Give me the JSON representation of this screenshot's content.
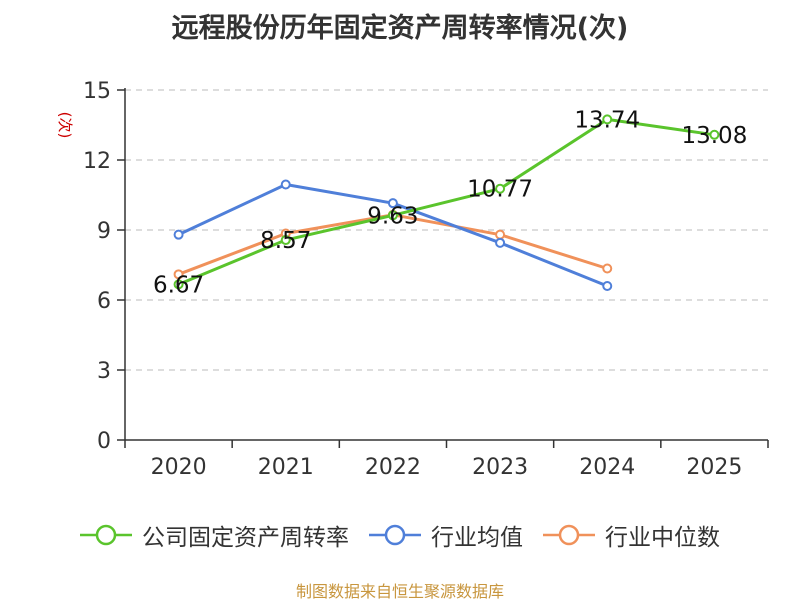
{
  "chart_data": {
    "type": "line",
    "title": "远程股份历年固定资产周转率情况(次)",
    "ylabel": "(次)",
    "xlabel": "",
    "categories": [
      "2020",
      "2021",
      "2022",
      "2023",
      "2024",
      "2025"
    ],
    "ylim": [
      0,
      15
    ],
    "yticks": [
      0,
      3,
      6,
      9,
      12,
      15
    ],
    "grid": true,
    "legend_position": "bottom",
    "series": [
      {
        "name": "公司固定资产周转率",
        "color": "#5ac42c",
        "values": [
          6.67,
          8.57,
          9.63,
          10.77,
          13.74,
          13.08
        ],
        "labels": [
          "6.67",
          "8.57",
          "9.63",
          "10.77",
          "13.74",
          "13.08"
        ]
      },
      {
        "name": "行业均值",
        "color": "#4f7fd9",
        "values": [
          8.8,
          10.95,
          10.15,
          8.45,
          6.6,
          null
        ]
      },
      {
        "name": "行业中位数",
        "color": "#f0915a",
        "values": [
          7.1,
          8.85,
          9.65,
          8.8,
          7.35,
          null
        ]
      }
    ],
    "source": "制图数据来自恒生聚源数据库"
  }
}
